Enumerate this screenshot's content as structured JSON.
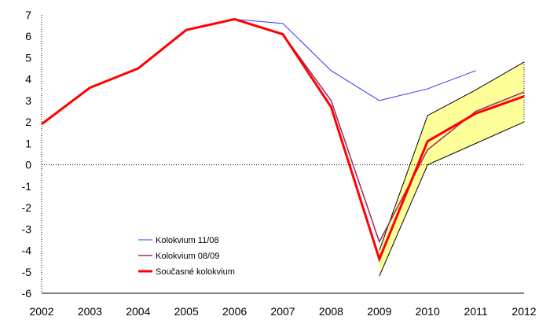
{
  "chart_data": {
    "type": "line",
    "title": "",
    "xlabel": "",
    "ylabel": "",
    "x": [
      2002,
      2003,
      2004,
      2005,
      2006,
      2007,
      2008,
      2009,
      2010,
      2011,
      2012
    ],
    "xlim": [
      2002,
      2012
    ],
    "ylim": [
      -6,
      7
    ],
    "y_ticks": [
      -6,
      -5,
      -4,
      -3,
      -2,
      -1,
      0,
      1,
      2,
      3,
      4,
      5,
      6,
      7
    ],
    "grid": false,
    "zero_line": "dotted",
    "legend_position": "bottom-left",
    "uncertainty_band": {
      "x": [
        2009,
        2010,
        2011,
        2012
      ],
      "upper": [
        -4.0,
        2.3,
        3.5,
        4.8
      ],
      "lower": [
        -5.2,
        0.0,
        1.0,
        2.0
      ],
      "fill_color": "#FFFF99",
      "edge_color": "#000000"
    },
    "series": [
      {
        "name": "Kolokvium 11/08",
        "color": "#3333FF",
        "width": 1,
        "x": [
          2002,
          2003,
          2004,
          2005,
          2006,
          2007,
          2008,
          2009,
          2010,
          2011
        ],
        "values": [
          1.9,
          3.6,
          4.5,
          6.3,
          6.8,
          6.6,
          4.4,
          3.0,
          3.55,
          4.4
        ]
      },
      {
        "name": "Kolokvium 08/09",
        "color": "#993366",
        "width": 1.6,
        "x": [
          2002,
          2003,
          2004,
          2005,
          2006,
          2007,
          2008,
          2009,
          2010,
          2011,
          2012
        ],
        "values": [
          1.9,
          3.6,
          4.5,
          6.3,
          6.8,
          6.1,
          3.0,
          -3.6,
          0.7,
          2.5,
          3.4
        ]
      },
      {
        "name": "Současné kolokvium",
        "color": "#FF0000",
        "width": 3,
        "x": [
          2002,
          2003,
          2004,
          2005,
          2006,
          2007,
          2008,
          2009,
          2010,
          2011,
          2012
        ],
        "values": [
          1.9,
          3.6,
          4.5,
          6.3,
          6.8,
          6.1,
          2.7,
          -4.4,
          1.1,
          2.4,
          3.2
        ]
      }
    ]
  }
}
